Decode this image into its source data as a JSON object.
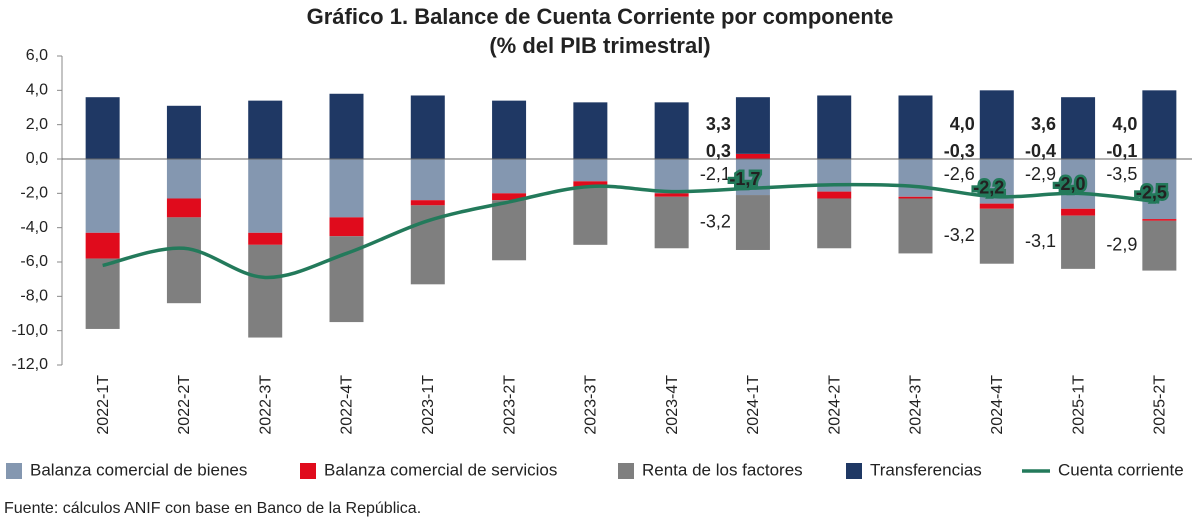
{
  "chart_data": {
    "type": "stacked-bar-line",
    "title": "Gráfico 1. Balance de Cuenta Corriente por componente",
    "subtitle": "(% del PIB trimestral)",
    "source": "Fuente: cálculos ANIF con base en Banco de la República.",
    "categories": [
      "2022-1T",
      "2022-2T",
      "2022-3T",
      "2022-4T",
      "2023-1T",
      "2023-2T",
      "2023-3T",
      "2023-4T",
      "2024-1T",
      "2024-2T",
      "2024-3T",
      "2024-4T",
      "2025-1T",
      "2025-2T"
    ],
    "series": [
      {
        "name": "Balanza comercial de bienes",
        "color": "#8497b0",
        "values": [
          -4.3,
          -2.3,
          -4.3,
          -3.4,
          -2.4,
          -2.0,
          -1.3,
          -2.0,
          -2.1,
          -1.9,
          -2.2,
          -2.6,
          -2.9,
          -3.5
        ],
        "value_labels": [
          null,
          null,
          null,
          null,
          null,
          null,
          null,
          null,
          "-2,1",
          null,
          null,
          "-2,6",
          "-2,9",
          "-3,5"
        ]
      },
      {
        "name": "Balanza comercial de servicios",
        "color": "#e00b1c",
        "values": [
          -1.5,
          -1.1,
          -0.7,
          -1.1,
          -0.3,
          -0.4,
          -0.3,
          -0.2,
          0.3,
          -0.4,
          -0.1,
          -0.3,
          -0.4,
          -0.1
        ],
        "value_labels": [
          null,
          null,
          null,
          null,
          null,
          null,
          null,
          null,
          "0,3",
          null,
          null,
          "-0,3",
          "-0,4",
          "-0,1"
        ]
      },
      {
        "name": "Renta de los factores",
        "color": "#7f7f7f",
        "values": [
          -4.1,
          -5.0,
          -5.4,
          -5.0,
          -4.6,
          -3.5,
          -3.4,
          -3.0,
          -3.2,
          -2.9,
          -3.2,
          -3.2,
          -3.1,
          -2.9
        ],
        "value_labels": [
          null,
          null,
          null,
          null,
          null,
          null,
          null,
          null,
          "-3,2",
          null,
          null,
          "-3,2",
          "-3,1",
          "-2,9"
        ]
      },
      {
        "name": "Transferencias",
        "color": "#1f3864",
        "values": [
          3.6,
          3.1,
          3.4,
          3.8,
          3.7,
          3.4,
          3.3,
          3.3,
          3.3,
          3.7,
          3.7,
          4.0,
          3.6,
          4.0
        ],
        "value_labels": [
          null,
          null,
          null,
          null,
          null,
          null,
          null,
          null,
          "3,3",
          null,
          null,
          "4,0",
          "3,6",
          "4,0"
        ]
      },
      {
        "name": "Cuenta corriente",
        "color": "#237a5b",
        "kind": "line",
        "values": [
          -6.2,
          -5.2,
          -6.9,
          -5.5,
          -3.6,
          -2.5,
          -1.6,
          -1.9,
          -1.7,
          -1.5,
          -1.6,
          -2.2,
          -2.0,
          -2.5
        ],
        "value_labels": [
          null,
          null,
          null,
          null,
          null,
          null,
          null,
          null,
          "-1,7",
          null,
          null,
          "-2,2",
          "-2,0",
          "-2,5"
        ]
      }
    ],
    "ylim": [
      -12,
      6
    ],
    "yticks": [
      {
        "value": 6,
        "label": "6,0"
      },
      {
        "value": 4,
        "label": "4,0"
      },
      {
        "value": 2,
        "label": "2,0"
      },
      {
        "value": 0,
        "label": "0,0"
      },
      {
        "value": -2,
        "label": "-2,0"
      },
      {
        "value": -4,
        "label": "-4,0"
      },
      {
        "value": -6,
        "label": "-6,0"
      },
      {
        "value": -8,
        "label": "-8,0"
      },
      {
        "value": -10,
        "label": "-10,0"
      },
      {
        "value": -12,
        "label": "-12,0"
      }
    ],
    "legend": "bottom"
  }
}
